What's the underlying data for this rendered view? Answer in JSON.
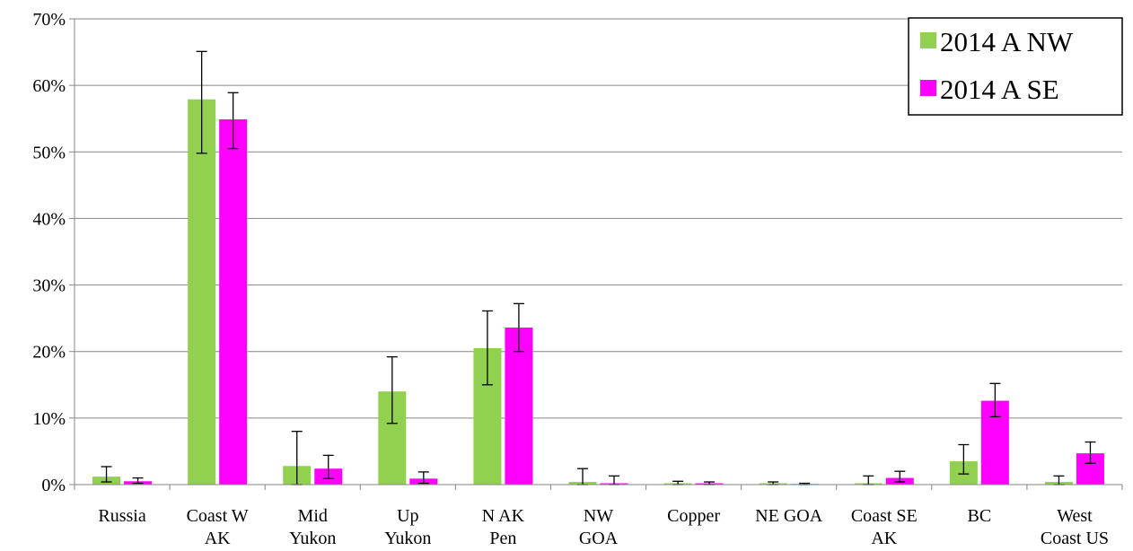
{
  "chart_data": {
    "type": "bar",
    "title": "",
    "xlabel": "",
    "ylabel": "",
    "ylim": [
      0,
      0.7
    ],
    "yticks": [
      0,
      0.1,
      0.2,
      0.3,
      0.4,
      0.5,
      0.6,
      0.7
    ],
    "ytick_labels": [
      "0%",
      "10%",
      "20%",
      "30%",
      "40%",
      "50%",
      "60%",
      "70%"
    ],
    "grid": "horizontal",
    "legend_position": "top-right",
    "categories": [
      [
        "Russia"
      ],
      [
        "Coast W",
        "AK"
      ],
      [
        "Mid",
        "Yukon"
      ],
      [
        "Up",
        "Yukon"
      ],
      [
        "N AK",
        "Pen"
      ],
      [
        "NW",
        "GOA"
      ],
      [
        "Copper"
      ],
      [
        "NE GOA"
      ],
      [
        "Coast SE",
        "AK"
      ],
      [
        "BC"
      ],
      [
        "West",
        "Coast US"
      ]
    ],
    "series": [
      {
        "name": "2014 A NW",
        "color": "#92d050",
        "values": [
          0.012,
          0.579,
          0.028,
          0.14,
          0.205,
          0.004,
          0.002,
          0.002,
          0.002,
          0.035,
          0.004
        ],
        "error_low": [
          0.004,
          0.498,
          0.0,
          0.092,
          0.15,
          0.0,
          0.0,
          0.0,
          0.0,
          0.016,
          0.0
        ],
        "error_high": [
          0.027,
          0.651,
          0.08,
          0.192,
          0.261,
          0.024,
          0.005,
          0.004,
          0.013,
          0.06,
          0.013
        ]
      },
      {
        "name": "2014 A SE",
        "color": "#ff00ff",
        "values": [
          0.005,
          0.549,
          0.024,
          0.009,
          0.236,
          0.002,
          0.002,
          0.001,
          0.01,
          0.126,
          0.047
        ],
        "error_low": [
          0.002,
          0.505,
          0.009,
          0.002,
          0.2,
          0.0,
          0.0,
          0.0,
          0.004,
          0.102,
          0.032
        ],
        "error_high": [
          0.01,
          0.589,
          0.044,
          0.019,
          0.272,
          0.013,
          0.004,
          0.002,
          0.02,
          0.152,
          0.064
        ]
      }
    ]
  }
}
